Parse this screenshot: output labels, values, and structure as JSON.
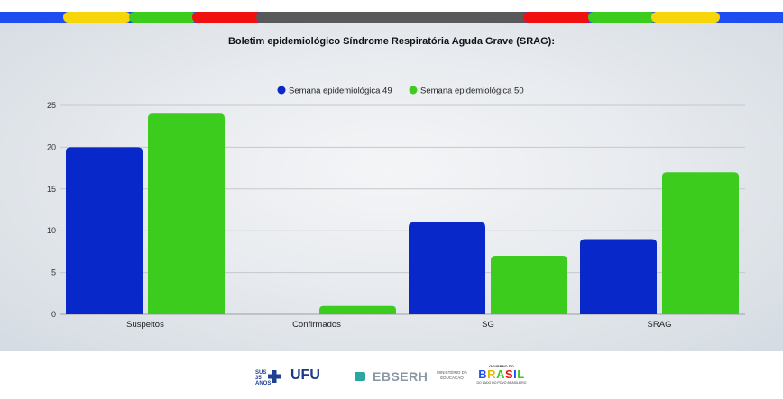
{
  "chart_data": {
    "type": "bar",
    "title": "Boletim epidemiológico Síndrome Respiratória Aguda Grave (SRAG):",
    "categories": [
      "Suspeitos",
      "Confirmados",
      "SG",
      "SRAG"
    ],
    "series": [
      {
        "name": "Semana epidemiológica 49",
        "values": [
          20,
          0,
          11,
          9
        ],
        "color": "#0828c9"
      },
      {
        "name": "Semana epidemiológica 50",
        "values": [
          24,
          1,
          7,
          17
        ],
        "color": "#3ccc1e"
      }
    ],
    "yticks": [
      0,
      5,
      10,
      15,
      20,
      25
    ],
    "ylim": [
      0,
      25
    ],
    "grid": true,
    "legend_position": "top-center"
  },
  "top_bar_colors": [
    "#1e4ef0",
    "#f6d60a",
    "#3ccc1e",
    "#f01010",
    "#595959",
    "#f01010",
    "#3ccc1e",
    "#f6d60a",
    "#1e4ef0"
  ],
  "footer": {
    "sus": "SUS 35 ANOS",
    "ufu": "UFU",
    "ebserh": "EBSERH",
    "mec": "MINISTÉRIO DA EDUCAÇÃO",
    "gov_top": "GOVERNO DO",
    "gov_word": "BRASIL",
    "gov_sub": "DO LADO DO POVO BRASILEIRO"
  }
}
